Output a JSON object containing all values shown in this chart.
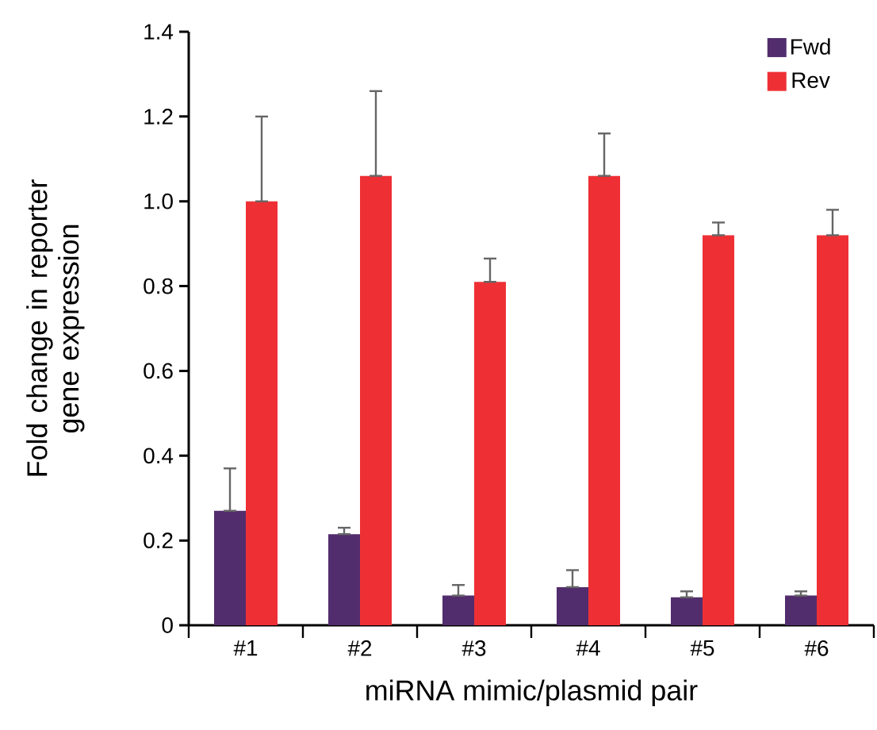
{
  "chart_data": {
    "type": "bar",
    "xlabel": "miRNA mimic/plasmid pair",
    "ylabel": "Fold change in reporter gene expression",
    "categories": [
      "#1",
      "#2",
      "#3",
      "#4",
      "#5",
      "#6"
    ],
    "series": [
      {
        "name": "Fwd",
        "color": "#522d6d",
        "values": [
          0.27,
          0.215,
          0.07,
          0.09,
          0.066,
          0.07
        ],
        "errors": [
          [
            0.27,
            0.37
          ],
          [
            0.215,
            0.23
          ],
          [
            0.07,
            0.095
          ],
          [
            0.09,
            0.13
          ],
          [
            0.066,
            0.08
          ],
          [
            0.07,
            0.08
          ]
        ]
      },
      {
        "name": "Rev",
        "color": "#ee3035",
        "values": [
          1.0,
          1.06,
          0.81,
          1.06,
          0.92,
          0.92
        ],
        "errors": [
          [
            1.0,
            1.2
          ],
          [
            1.06,
            1.26
          ],
          [
            0.81,
            0.865
          ],
          [
            1.06,
            1.16
          ],
          [
            0.92,
            0.95
          ],
          [
            0.92,
            0.98
          ]
        ]
      }
    ],
    "ylim": [
      0,
      1.4
    ],
    "yticks": [
      0,
      0.2,
      0.4,
      0.6,
      0.8,
      {
        "value": 1.0,
        "label": "1.0"
      },
      1.2,
      1.4
    ],
    "legend": "top right"
  }
}
